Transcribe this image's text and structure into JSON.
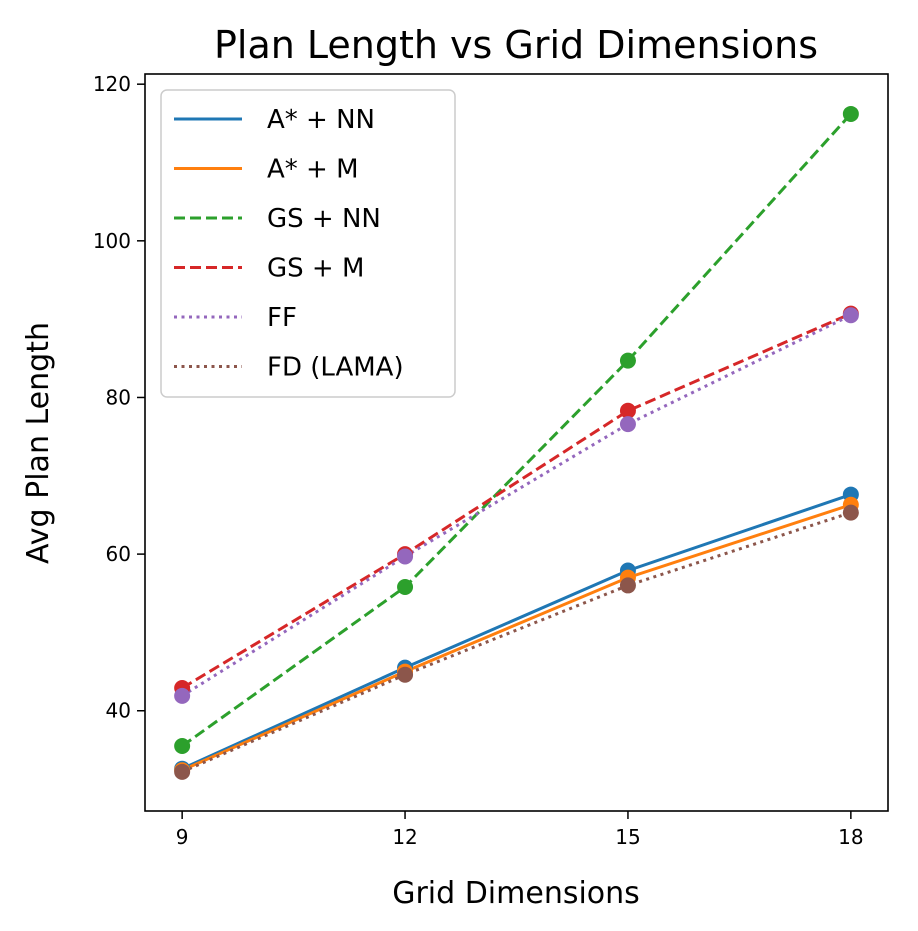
{
  "chart_data": {
    "type": "line",
    "title": "Plan Length vs Grid Dimensions",
    "xlabel": "Grid Dimensions",
    "ylabel": "Avg Plan Length",
    "x": [
      9,
      12,
      15,
      18
    ],
    "x_ticks": [
      "9",
      "12",
      "15",
      "18"
    ],
    "y_ticks": [
      "40",
      "60",
      "80",
      "100",
      "120"
    ],
    "xlim": [
      8.5,
      18.5
    ],
    "ylim": [
      27.2,
      121.3
    ],
    "grid": false,
    "legend_position": "top-left",
    "series": [
      {
        "name": "A* + NN",
        "color": "#1f77b4",
        "style": "solid",
        "values": [
          32.6,
          45.5,
          57.9,
          67.6
        ]
      },
      {
        "name": "A* + M",
        "color": "#ff7f0e",
        "style": "solid",
        "values": [
          32.4,
          45.0,
          57.0,
          66.3
        ]
      },
      {
        "name": "GS + NN",
        "color": "#2ca02c",
        "style": "dashed",
        "values": [
          35.5,
          55.8,
          84.7,
          116.2
        ]
      },
      {
        "name": "GS + M",
        "color": "#d62728",
        "style": "dashed",
        "values": [
          42.9,
          60.0,
          78.3,
          90.7
        ]
      },
      {
        "name": "FF",
        "color": "#9467bd",
        "style": "dotted",
        "values": [
          41.9,
          59.7,
          76.6,
          90.5
        ]
      },
      {
        "name": "FD (LAMA)",
        "color": "#8c564b",
        "style": "dotted",
        "values": [
          32.2,
          44.6,
          56.0,
          65.3
        ]
      }
    ]
  }
}
